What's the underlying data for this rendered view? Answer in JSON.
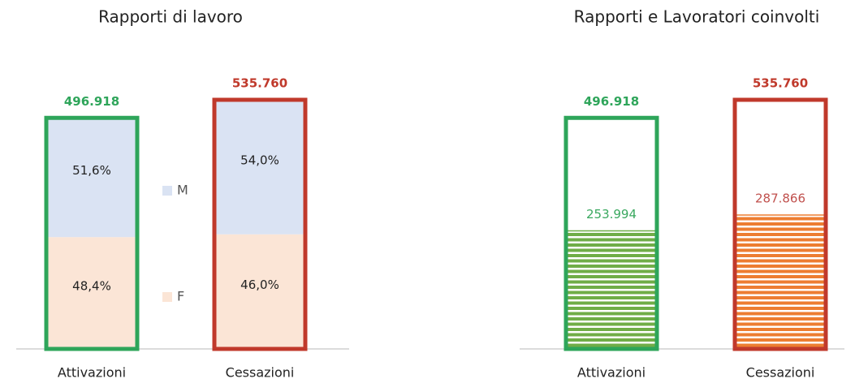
{
  "chart_data": [
    {
      "type": "stacked_bar",
      "title": "Rapporti di lavoro",
      "categories": [
        "Attivazioni",
        "Cessazioni"
      ],
      "totals": {
        "values": [
          496918,
          535760
        ],
        "value_labels": [
          "496.918",
          "535.760"
        ],
        "colors": [
          "#2ea55a",
          "#c0392b"
        ]
      },
      "series": [
        {
          "name": "F",
          "color": "#fbe5d6",
          "values": [
            48.4,
            46.0
          ],
          "value_labels": [
            "48,4%",
            "46,0%"
          ]
        },
        {
          "name": "M",
          "color": "#dae3f3",
          "values": [
            51.6,
            54.0
          ],
          "value_labels": [
            "51,6%",
            "54,0%"
          ]
        }
      ]
    },
    {
      "type": "hatched_bar",
      "title": "Rapporti e Lavoratori coinvolti",
      "categories": [
        "Attivazioni",
        "Cessazioni"
      ],
      "totals": {
        "values": [
          496918,
          535760
        ],
        "value_labels": [
          "496.918",
          "535.760"
        ],
        "colors": [
          "#2ea55a",
          "#c0392b"
        ]
      },
      "values": [
        253994,
        287866
      ],
      "value_labels": [
        "253.994",
        "287.866"
      ],
      "colors": [
        "#70ad47",
        "#ed7d31"
      ],
      "label_colors": [
        "#3aa85f",
        "#c0504d"
      ]
    }
  ]
}
